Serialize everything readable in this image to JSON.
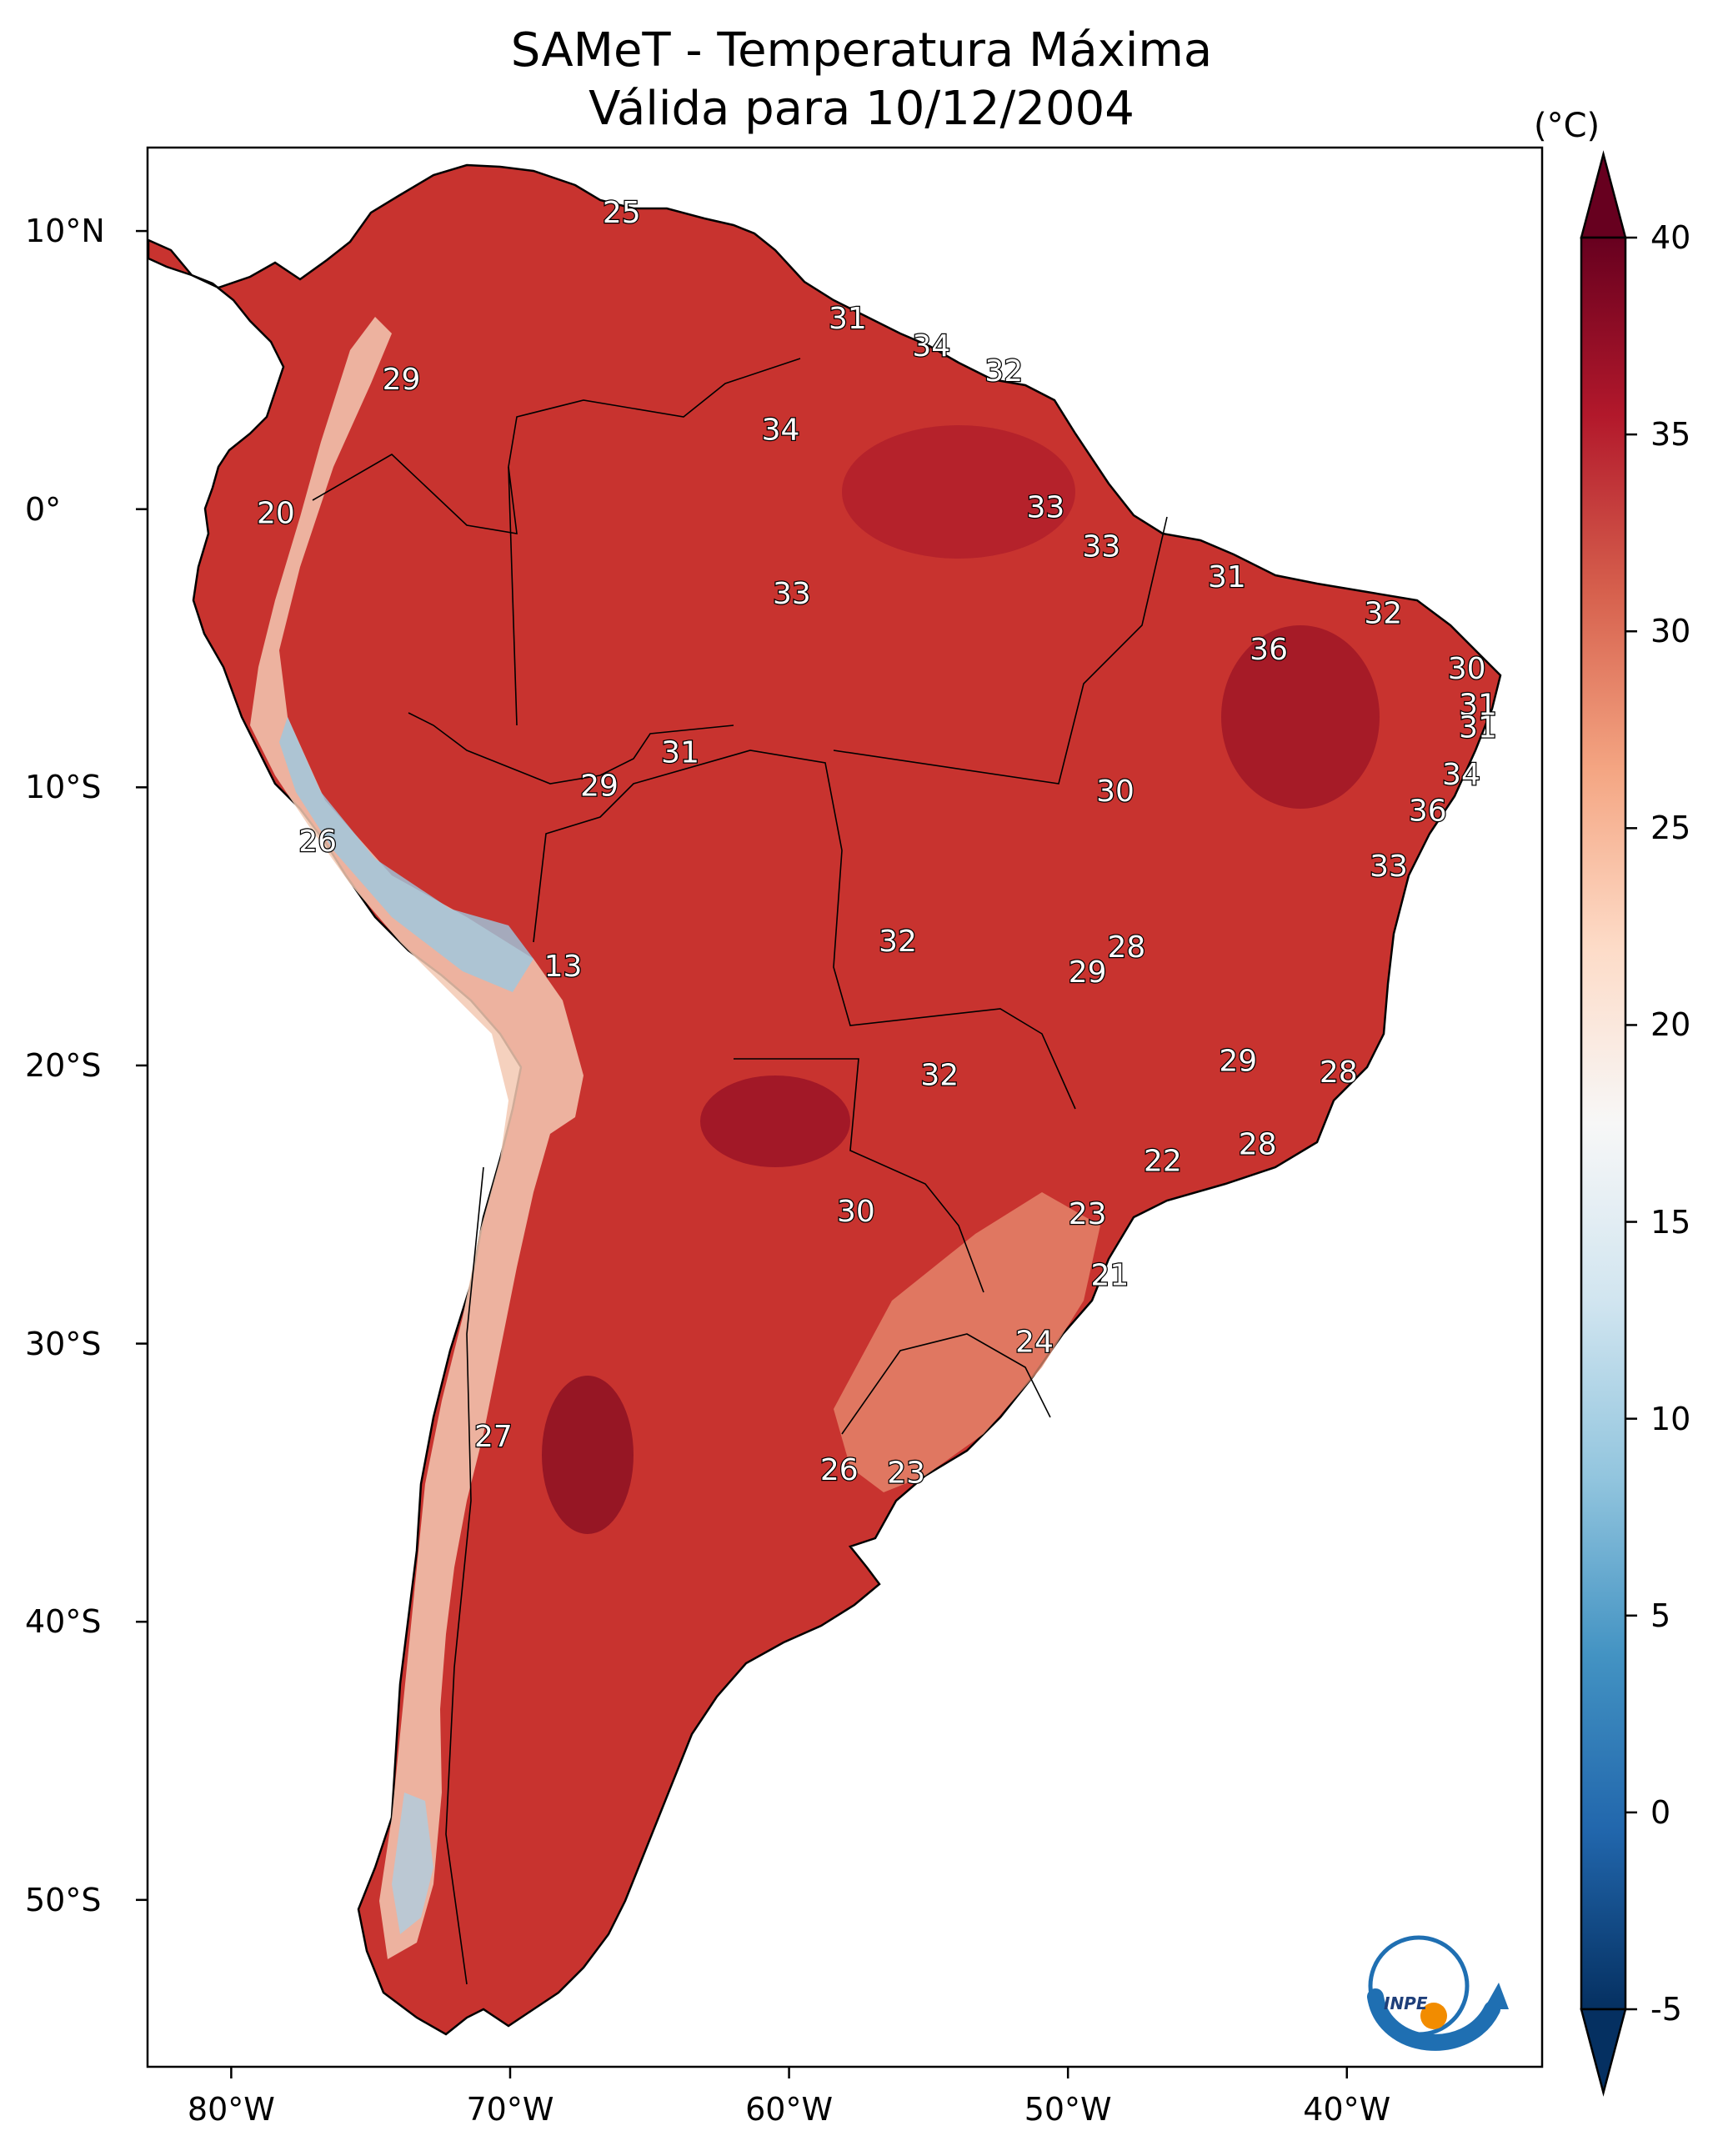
{
  "title": "SAMeT - Temperatura Máxima",
  "subtitle": "Válida para 10/12/2004",
  "map": {
    "projection": "PlateCarree",
    "lon_range": [
      -83,
      -33
    ],
    "lat_range": [
      -56,
      13
    ],
    "x_ticks": [
      {
        "lon": -80,
        "label": "80°W"
      },
      {
        "lon": -70,
        "label": "70°W"
      },
      {
        "lon": -60,
        "label": "60°W"
      },
      {
        "lon": -50,
        "label": "50°W"
      },
      {
        "lon": -40,
        "label": "40°W"
      }
    ],
    "y_ticks": [
      {
        "lat": 10,
        "label": "10°N"
      },
      {
        "lat": 0,
        "label": "0°"
      },
      {
        "lat": -10,
        "label": "10°S"
      },
      {
        "lat": -20,
        "label": "20°S"
      },
      {
        "lat": -30,
        "label": "30°S"
      },
      {
        "lat": -40,
        "label": "40°S"
      },
      {
        "lat": -50,
        "label": "50°S"
      }
    ],
    "station_labels": [
      {
        "lon": -66,
        "lat": 10.6,
        "value": "25"
      },
      {
        "lon": -57.9,
        "lat": 6.8,
        "value": "31"
      },
      {
        "lon": -54.9,
        "lat": 5.8,
        "value": "34"
      },
      {
        "lon": -52.3,
        "lat": 4.9,
        "value": "32"
      },
      {
        "lon": -73.9,
        "lat": 4.6,
        "value": "29"
      },
      {
        "lon": -60.3,
        "lat": 2.8,
        "value": "34"
      },
      {
        "lon": -78.4,
        "lat": -0.2,
        "value": "20"
      },
      {
        "lon": -50.8,
        "lat": 0.0,
        "value": "33"
      },
      {
        "lon": -48.8,
        "lat": -1.4,
        "value": "33"
      },
      {
        "lon": -44.3,
        "lat": -2.5,
        "value": "31"
      },
      {
        "lon": -59.9,
        "lat": -3.1,
        "value": "33"
      },
      {
        "lon": -38.7,
        "lat": -3.8,
        "value": "32"
      },
      {
        "lon": -42.8,
        "lat": -5.1,
        "value": "36"
      },
      {
        "lon": -35.7,
        "lat": -5.8,
        "value": "30"
      },
      {
        "lon": -35.3,
        "lat": -7.1,
        "value": "31"
      },
      {
        "lon": -35.3,
        "lat": -7.9,
        "value": "31"
      },
      {
        "lon": -63.9,
        "lat": -8.8,
        "value": "31"
      },
      {
        "lon": -35.9,
        "lat": -9.6,
        "value": "34"
      },
      {
        "lon": -66.8,
        "lat": -10.0,
        "value": "29"
      },
      {
        "lon": -48.3,
        "lat": -10.2,
        "value": "30"
      },
      {
        "lon": -37.1,
        "lat": -10.9,
        "value": "36"
      },
      {
        "lon": -76.9,
        "lat": -12.0,
        "value": "26"
      },
      {
        "lon": -38.5,
        "lat": -12.9,
        "value": "33"
      },
      {
        "lon": -56.1,
        "lat": -15.6,
        "value": "32"
      },
      {
        "lon": -47.9,
        "lat": -15.8,
        "value": "28"
      },
      {
        "lon": -49.3,
        "lat": -16.7,
        "value": "29"
      },
      {
        "lon": -68.1,
        "lat": -16.5,
        "value": "13"
      },
      {
        "lon": -43.9,
        "lat": -19.9,
        "value": "29"
      },
      {
        "lon": -54.6,
        "lat": -20.4,
        "value": "32"
      },
      {
        "lon": -40.3,
        "lat": -20.3,
        "value": "28"
      },
      {
        "lon": -43.2,
        "lat": -22.9,
        "value": "28"
      },
      {
        "lon": -46.6,
        "lat": -23.5,
        "value": "22"
      },
      {
        "lon": -57.6,
        "lat": -25.3,
        "value": "30"
      },
      {
        "lon": -49.3,
        "lat": -25.4,
        "value": "23"
      },
      {
        "lon": -48.5,
        "lat": -27.6,
        "value": "21"
      },
      {
        "lon": -51.2,
        "lat": -30.0,
        "value": "24"
      },
      {
        "lon": -70.6,
        "lat": -33.4,
        "value": "27"
      },
      {
        "lon": -58.2,
        "lat": -34.6,
        "value": "26"
      },
      {
        "lon": -55.8,
        "lat": -34.7,
        "value": "23"
      }
    ]
  },
  "colorbar": {
    "unit": "(°C)",
    "min": -5,
    "max": 40,
    "colors": [
      "#053061",
      "#2166ac",
      "#4393c3",
      "#92c5de",
      "#d1e5f0",
      "#f7f7f7",
      "#fddbc7",
      "#f4a582",
      "#d6604d",
      "#b2182b",
      "#67001f"
    ],
    "ticks": [
      {
        "value": 40,
        "label": "40"
      },
      {
        "value": 35,
        "label": "35"
      },
      {
        "value": 30,
        "label": "30"
      },
      {
        "value": 25,
        "label": "25"
      },
      {
        "value": 20,
        "label": "20"
      },
      {
        "value": 15,
        "label": "15"
      },
      {
        "value": 10,
        "label": "10"
      },
      {
        "value": 5,
        "label": "5"
      },
      {
        "value": 0,
        "label": "0"
      },
      {
        "value": -5,
        "label": "-5"
      }
    ]
  },
  "logo": {
    "text": "INPE"
  }
}
